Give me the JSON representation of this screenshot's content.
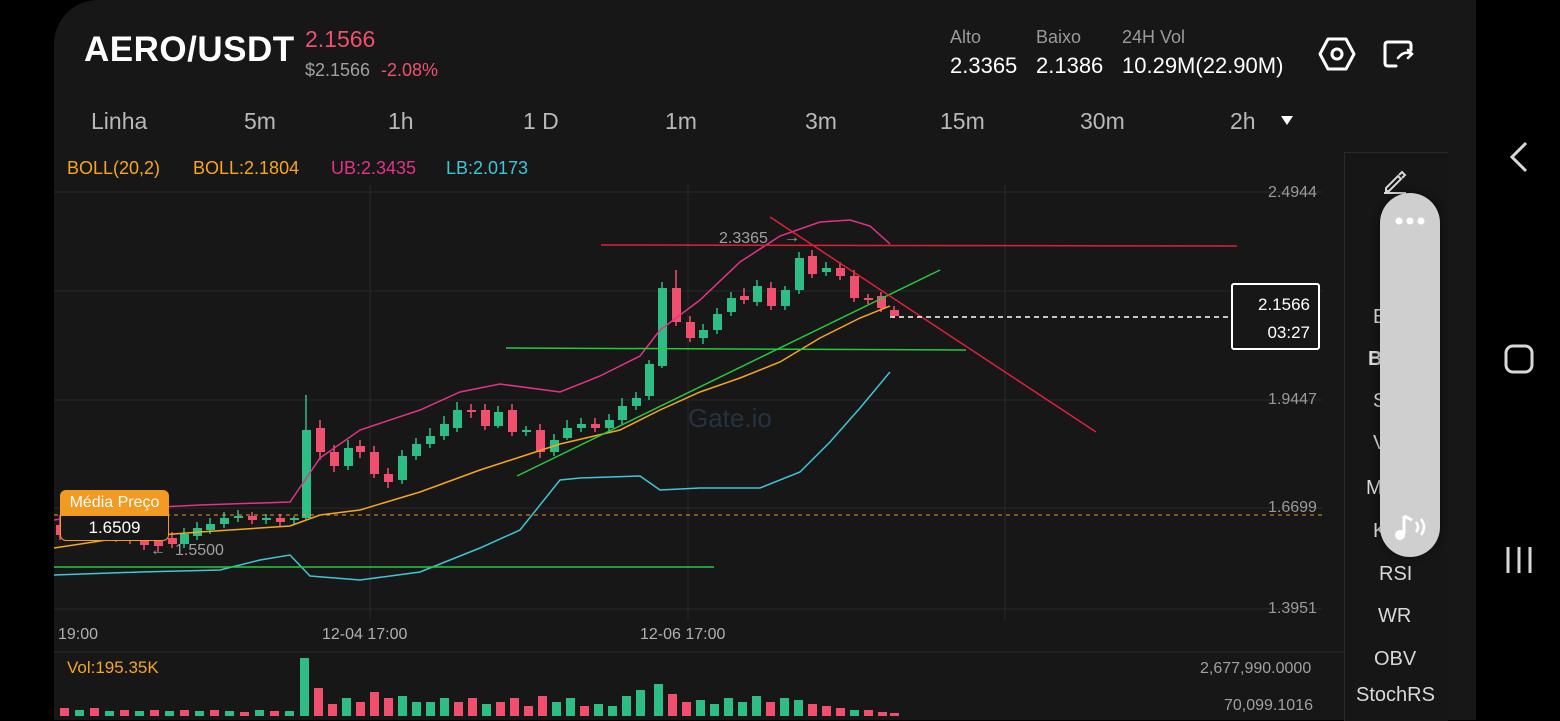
{
  "header": {
    "pair": "AERO/USDT",
    "price": "2.1566",
    "usd_price": "$2.1566",
    "change": "-2.08%",
    "stats": [
      {
        "label": "Alto",
        "value": "2.3365"
      },
      {
        "label": "Baixo",
        "value": "2.1386"
      },
      {
        "label": "24H Vol",
        "value": "10.29M(22.90M)"
      }
    ],
    "icons": [
      "settings-hexagon-icon",
      "share-screen-icon"
    ]
  },
  "timeframes": [
    "Linha",
    "5m",
    "1h",
    "1 D",
    "1m",
    "3m",
    "15m",
    "30m",
    "2h"
  ],
  "boll": {
    "name": "BOLL(20,2)",
    "mid": "BOLL:2.1804",
    "ub": "UB:2.3435",
    "lb": "LB:2.0173"
  },
  "price_axis": [
    "2.4944",
    "1.9447",
    "1.6699",
    "1.3951"
  ],
  "time_axis": [
    "19:00",
    "12-04 17:00",
    "12-06 17:00"
  ],
  "annotations": {
    "high_marker": "2.3365",
    "low_marker": "1.5500",
    "current_price": "2.1566",
    "countdown": "03:27",
    "avg_price_label": "Média Preço",
    "avg_price_value": "1.6509",
    "watermark": "Gate.io"
  },
  "volume": {
    "label": "Vol:195.35K",
    "axis_top": "2,677,990.0000",
    "axis_bottom": "70,099.1016"
  },
  "indicators": [
    "E",
    "B",
    "S",
    "V",
    "M",
    "K",
    "RSI",
    "WR",
    "OBV",
    "StochRS"
  ],
  "colors": {
    "up": "#2ebd85",
    "down": "#f0506e",
    "boll_mid": "#f5a623",
    "boll_ub": "#e0338a",
    "boll_lb": "#3fc6d8",
    "accent": "#f29a22"
  }
}
